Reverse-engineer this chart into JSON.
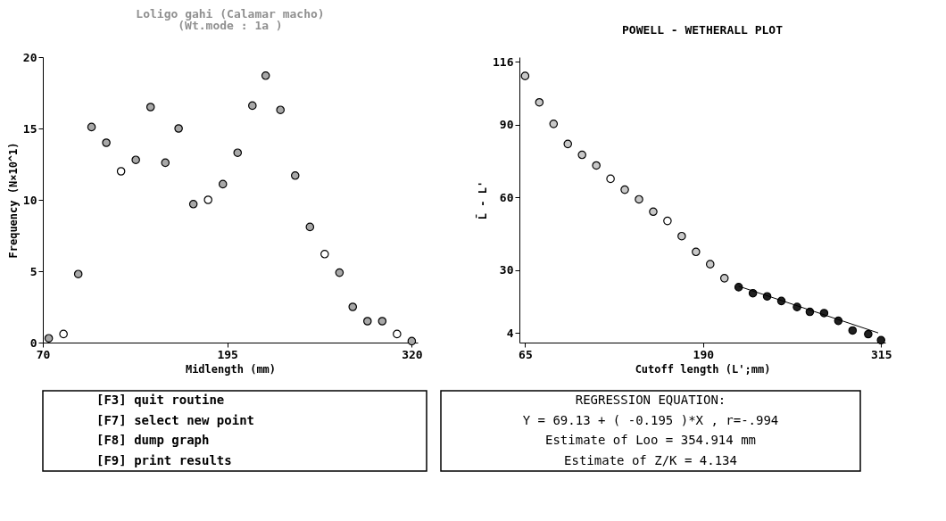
{
  "chart_data": [
    {
      "type": "scatter",
      "title": "Loligo gahi (Calamar macho)",
      "subtitle": "(Wt.mode : 1a )",
      "xlabel": "Midlength (mm)",
      "ylabel": "Frequency (N×10^1)",
      "xlim": [
        70,
        324
      ],
      "xticks": [
        70,
        195,
        320
      ],
      "ylim": [
        0,
        20
      ],
      "yticks": [
        0,
        5,
        10,
        15,
        20
      ],
      "grid": false,
      "marker": "circle",
      "series": [
        {
          "color": "#a8a8a8",
          "x": [
            74,
            94,
            103,
            113,
            133,
            143,
            153,
            162,
            172,
            192,
            202,
            212,
            221,
            231,
            241,
            251,
            271,
            280,
            290,
            300,
            320
          ],
          "values": [
            0.3,
            4.8,
            15.1,
            14.0,
            12.8,
            16.5,
            12.6,
            15.0,
            9.7,
            11.1,
            13.3,
            16.6,
            18.7,
            16.3,
            11.7,
            8.1,
            4.9,
            2.5,
            1.5,
            1.5,
            0.1
          ]
        },
        {
          "color": "#ffffff",
          "x": [
            84,
            123,
            182,
            261,
            310
          ],
          "values": [
            0.6,
            12.0,
            10.0,
            6.2,
            0.6
          ]
        }
      ]
    },
    {
      "type": "scatter",
      "title": "POWELL - WETHERALL PLOT",
      "xlabel": "Cutoff length (L';mm)",
      "ylabel": "L̄ - L'",
      "xlim": [
        61,
        318
      ],
      "xticks": [
        65,
        190,
        315
      ],
      "ylim": [
        0,
        118
      ],
      "yticks": [
        4,
        30,
        60,
        90,
        116
      ],
      "grid": false,
      "marker": "circle",
      "series": [
        {
          "color": "#c8c8c8",
          "x": [
            65,
            75,
            85,
            95,
            105,
            115,
            135,
            145,
            155,
            175,
            185,
            195,
            205
          ],
          "values": [
            110.2,
            99.3,
            90.4,
            82.1,
            77.6,
            73.2,
            63.2,
            59.2,
            54.1,
            44.0,
            37.5,
            32.4,
            26.6
          ]
        },
        {
          "color": "#ffffff",
          "x": [
            125,
            165
          ],
          "values": [
            67.7,
            50.3
          ]
        },
        {
          "color": "#202020",
          "x": [
            215,
            225,
            235,
            245,
            256,
            265,
            275,
            285,
            295,
            306,
            315
          ],
          "values": [
            22.9,
            20.4,
            19.1,
            17.2,
            14.7,
            12.7,
            12.2,
            9.0,
            5.0,
            3.5,
            1.0
          ]
        },
        {
          "type": "line",
          "marker": "none",
          "color": "#000000",
          "x": [
            215,
            313
          ],
          "values": [
            23.3,
            4.0
          ]
        }
      ]
    },
    {
      "type": "other",
      "annotations": [
        "[F3] quit routine",
        "[F7] select new point",
        "[F8] dump graph",
        "[F9] print results"
      ]
    },
    {
      "type": "other",
      "title": "REGRESSION EQUATION:",
      "annotations": [
        "Y = 69.13 + ( -0.195 )*X ,  r=-.994",
        "Estimate of Loo = 354.914 mm",
        "Estimate of Z/K =   4.134"
      ]
    }
  ]
}
